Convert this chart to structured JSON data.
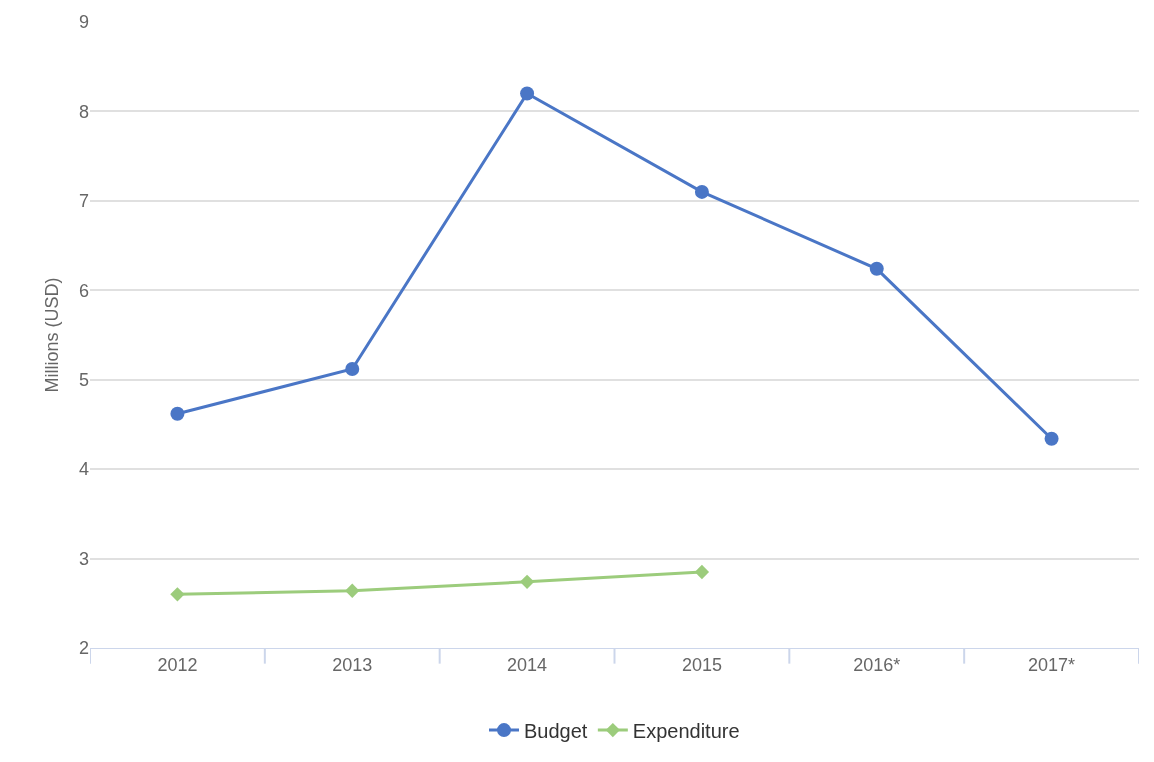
{
  "chart_data": {
    "type": "line",
    "ylabel": "Millions (USD)",
    "categories": [
      "2012",
      "2013",
      "2014",
      "2015",
      "2016*",
      "2017*"
    ],
    "series": [
      {
        "name": "Budget",
        "color": "#4a76c6",
        "marker": "circle",
        "values": [
          4.62,
          5.12,
          8.2,
          7.1,
          6.24,
          4.34
        ]
      },
      {
        "name": "Expenditure",
        "color": "#9ccc7c",
        "marker": "diamond",
        "values": [
          2.6,
          2.64,
          2.74,
          2.85,
          null,
          null
        ]
      }
    ],
    "ylim": [
      2,
      9
    ],
    "yticks": [
      2,
      3,
      4,
      5,
      6,
      7,
      8,
      9
    ],
    "grid": "y",
    "legend": "bottom",
    "line_style": "solid"
  }
}
